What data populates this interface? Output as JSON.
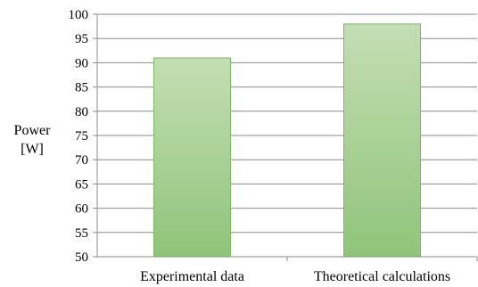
{
  "chart_data": {
    "type": "bar",
    "categories": [
      "Experimental data",
      "Theoretical calculations"
    ],
    "values": [
      91,
      98
    ],
    "title": "",
    "xlabel": "",
    "ylabel": [
      "Power",
      "[W]"
    ],
    "ylim": [
      50,
      100
    ],
    "yticks": [
      50,
      55,
      60,
      65,
      70,
      75,
      80,
      85,
      90,
      95,
      100
    ],
    "grid": true,
    "legend": "none",
    "colors": {
      "bar_top": "#c4deb4",
      "bar_bottom": "#8fc47a",
      "bar_border": "#7eb866",
      "gridline": "#8c8c8c",
      "axis": "#8c8c8c"
    }
  }
}
